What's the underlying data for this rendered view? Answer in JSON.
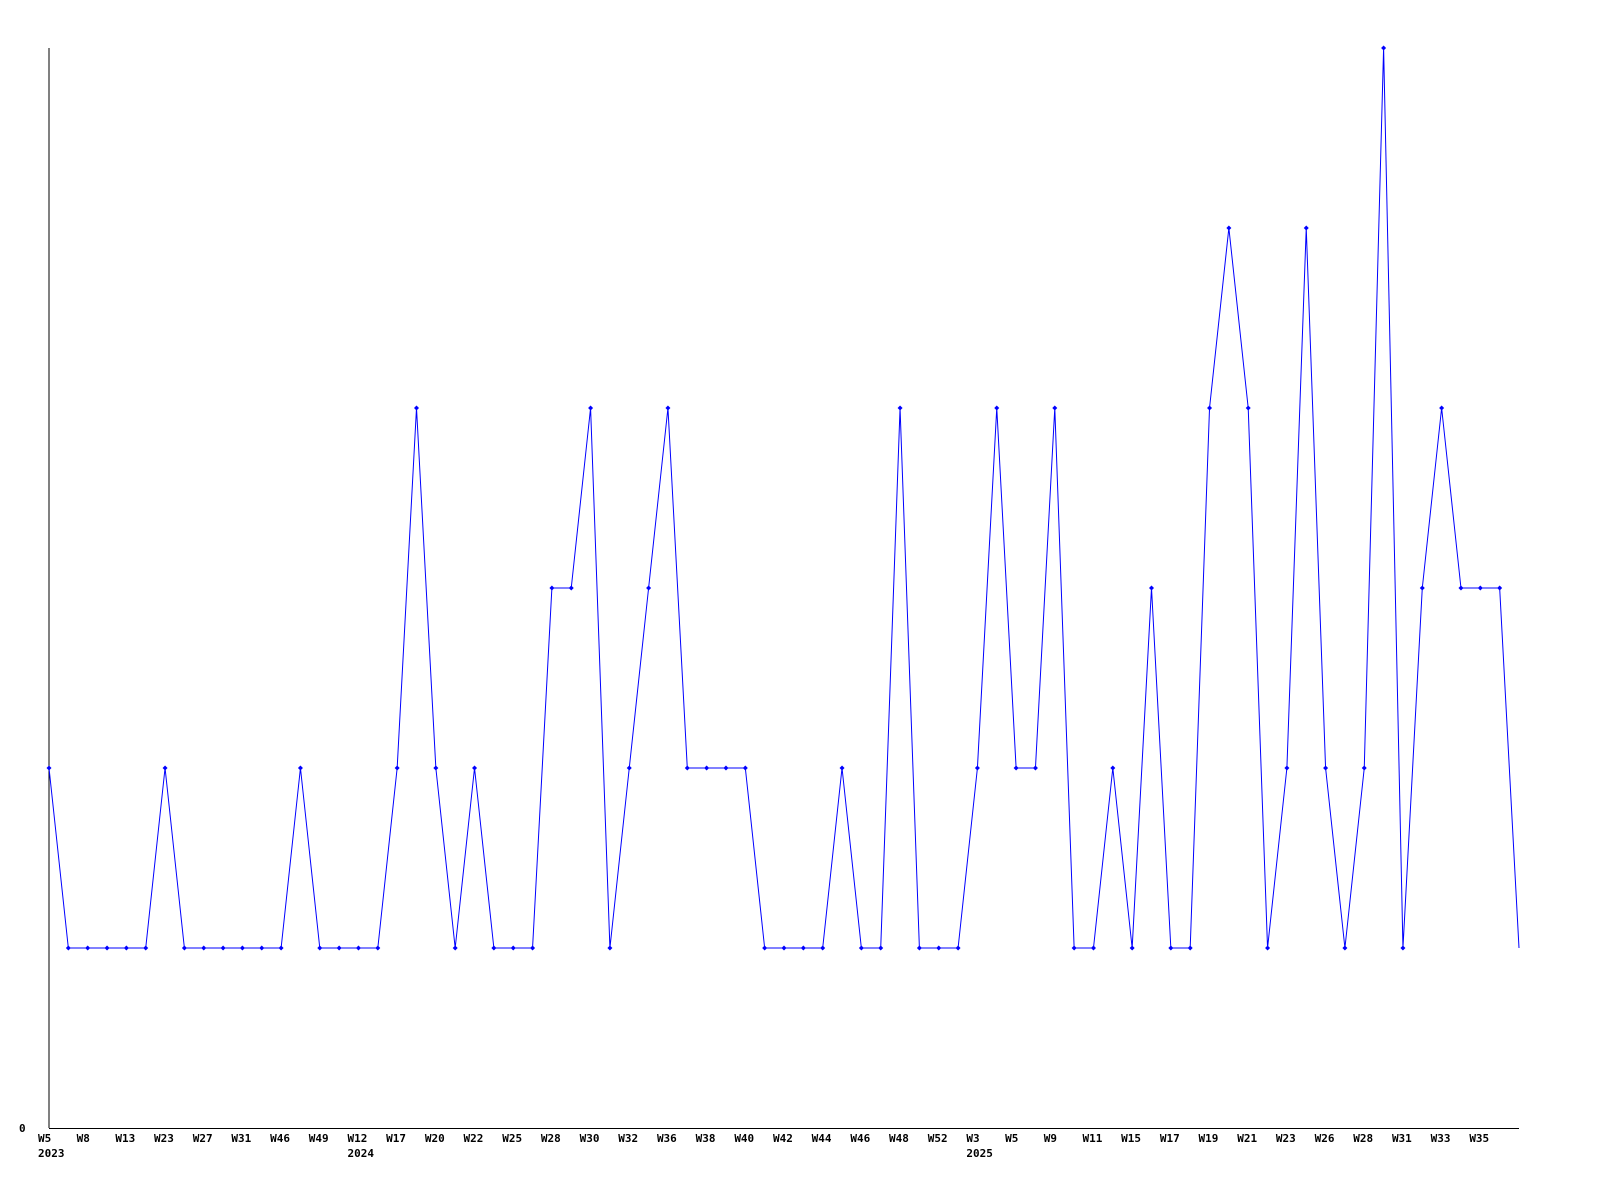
{
  "chart_data": {
    "type": "line",
    "title": "",
    "xlabel": "",
    "ylabel": "",
    "ylim": [
      0,
      6
    ],
    "grid": false,
    "line_color": "#0000ff",
    "axis_color": "#000000",
    "y_tick_labels": [
      {
        "value": 0,
        "label": "0"
      }
    ],
    "x_tick_labels": [
      "W5",
      "W8",
      "W13",
      "W23",
      "W27",
      "W31",
      "W46",
      "W49",
      "W12",
      "W17",
      "W20",
      "W22",
      "W25",
      "W28",
      "W30",
      "W32",
      "W36",
      "W38",
      "W40",
      "W42",
      "W44",
      "W46",
      "W48",
      "W52",
      "W3",
      "W5",
      "W9",
      "W11",
      "W15",
      "W17",
      "W19",
      "W21",
      "W23",
      "W26",
      "W28",
      "W31",
      "W33",
      "W35"
    ],
    "year_labels": [
      {
        "label": "2023",
        "at_tick": 0
      },
      {
        "label": "2024",
        "at_tick": 8
      },
      {
        "label": "2025",
        "at_tick": 24
      }
    ],
    "values": [
      2,
      1,
      1,
      1,
      1,
      1,
      2,
      1,
      1,
      1,
      1,
      1,
      1,
      2,
      1,
      1,
      1,
      1,
      2,
      4,
      2,
      1,
      2,
      1,
      1,
      1,
      3,
      3,
      4,
      1,
      2,
      3,
      4,
      2,
      2,
      2,
      2,
      1,
      1,
      1,
      1,
      2,
      1,
      1,
      4,
      1,
      1,
      1,
      2,
      4,
      2,
      2,
      4,
      1,
      1,
      2,
      1,
      3,
      1,
      1,
      4,
      5,
      4,
      1,
      2,
      5,
      2,
      1,
      2,
      6,
      1,
      3,
      4,
      3,
      3,
      3,
      1
    ]
  }
}
